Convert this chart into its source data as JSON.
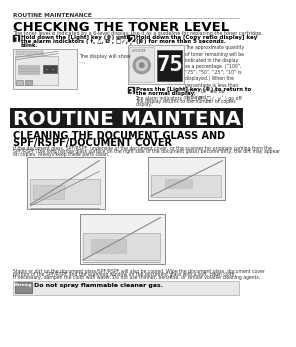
{
  "page_header": "ROUTINE MAINTENANCE",
  "section1_title": "CHECKING THE TONER LEVEL",
  "section1_subtitle": "The toner level is indicated by a 6-level display. Use it as a guideline for replacing the toner cartridge.",
  "step1_num": "1",
  "step1_text1": "Hold down the [Light] key (©) until",
  "step1_text2": "the alarm indicators ( †, △, Ø , □✓, ℘˅ )",
  "step1_text3": "blink.",
  "step1_sub": "The display will show\n- -.",
  "step2_num": "2",
  "step2_text1": "Hold down the [Copy ratio display] key",
  "step2_text2": "(©) for more than 5 seconds.",
  "step2_sub": "The approximate quantity\nof toner remaining will be\nindicated in the display\nas a percentage. (“100”,\n“75”, “50”, “25”, “10” is\ndisplayed.) When the\npercentage is less than\n10%, “L0” will be\ndisplayed.",
  "step3_num": "3",
  "step3_text1": "Press the [Light] key (©) to return to",
  "step3_text2": "the normal display.",
  "step3_sub1": "The alarm indicators ( †, △, Ø , □✓, ℘˅ ) go off.",
  "step3_sub2": "The display returns to the number of copies",
  "step3_sub3": "display.",
  "section2_header": "ROUTINE MAINTENANCE",
  "section2_title1": "CLEANING THE DOCUMENT GLASS AND",
  "section2_title2": "SPF/RSPF/DOCUMENT COVER",
  "section2_body1": "If the document glass, SPF/RSPF, underside of the document cover, or the scanner for originals coming from the",
  "section2_body2": "SPF/RSPF (the long narrow glass surface on the right side of the document glass) become dirty, the dirt may appear",
  "section2_body3": "on copies. Always keep these parts clean.",
  "section2_body4": "Stains or dirt on the document glass/SPF/RSPF will also be copied. Wipe the document glass, document cover",
  "section2_body5": "portion of the SPF/RSPF and the scanning window on the document glass with a soft, clean cloth.",
  "section2_body6": "If necessary, dampen the cloth with water. Do not use thinner, benzene, or similar volatile cleaning agents.",
  "warning_text": "Do not spray flammable cleaner gas.",
  "bg_color": "#ffffff",
  "dark_color": "#1a1a1a",
  "text_color": "#222222",
  "light_gray": "#f2f2f2",
  "med_gray": "#cccccc",
  "warn_bg": "#e8e8e8"
}
